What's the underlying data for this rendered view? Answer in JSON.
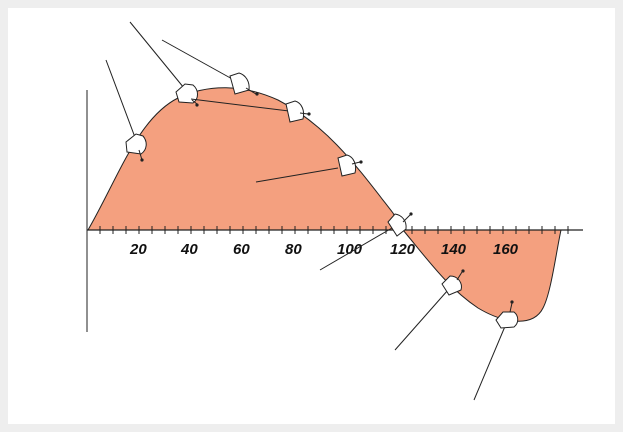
{
  "figure": {
    "x_tick_labels": [
      "20",
      "40",
      "60",
      "80",
      "100",
      "120",
      "140",
      "160"
    ],
    "fill_color": "#f4a07f",
    "outline_color": "#222222",
    "background_color": "#eeeeee",
    "panel_color": "#ffffff",
    "marker_shape": "cup-shaped protractor-like marker with a ray line and small pointer",
    "marker_count": 9
  }
}
